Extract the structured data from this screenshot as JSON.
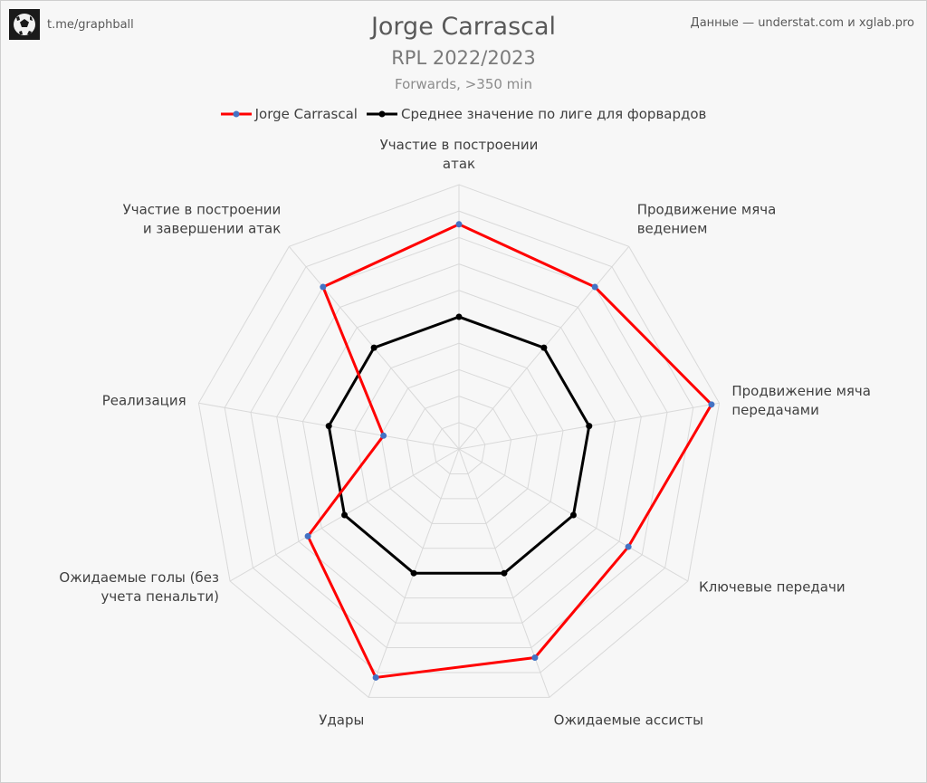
{
  "brand": {
    "text": "t.me/graphball"
  },
  "source": "Данные — understat.com и xglab.pro",
  "chart_data": {
    "type": "radar",
    "title": "Jorge Carrascal",
    "subtitle": "RPL 2022/2023",
    "note": "Forwards, >350 min",
    "axes": [
      "Участие в построении атак",
      "Продвижение мяча ведением",
      "Продвижение мяча передачами",
      "Ключевые передачи",
      "Ожидаемые ассисты",
      "Удары",
      "Ожидаемые голы (без учета пенальти)",
      "Реализация",
      "Участие в построении и завершении атак"
    ],
    "axis_label_lines": [
      [
        "Участие в построении",
        "атак"
      ],
      [
        "Продвижение мяча",
        "ведением"
      ],
      [
        "Продвижение мяча",
        "передачами"
      ],
      [
        "Ключевые передачи"
      ],
      [
        "Ожидаемые ассисты"
      ],
      [
        "Удары"
      ],
      [
        "Ожидаемые голы (без",
        "учета пенальти)"
      ],
      [
        "Реализация"
      ],
      [
        "Участие в построении",
        "и завершении атак"
      ]
    ],
    "range": [
      0,
      100
    ],
    "grid_rings": 10,
    "legend_position": "top",
    "series": [
      {
        "name": "Jorge Carrascal",
        "color": "#ff0000",
        "marker_color": "#4472c4",
        "values": [
          85,
          80,
          97,
          74,
          84,
          92,
          66,
          29,
          80
        ]
      },
      {
        "name": "Среднее значение по лиге для форвардов",
        "color": "#000000",
        "marker_color": "#000000",
        "values": [
          50,
          50,
          50,
          50,
          50,
          50,
          50,
          50,
          50
        ]
      }
    ]
  }
}
